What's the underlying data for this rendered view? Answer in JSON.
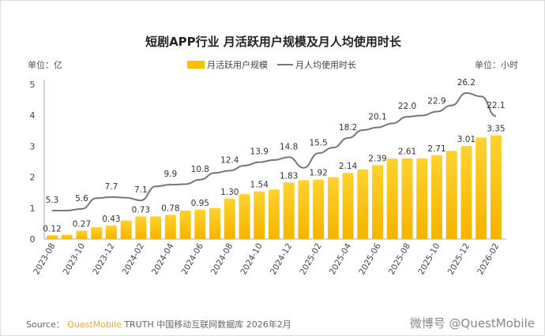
{
  "chart_data": {
    "type": "bar+line",
    "title": "短剧APP行业 月活跃用户规模及月人均使用时长",
    "left_unit": "单位：亿",
    "right_unit": "单位：小时",
    "legend": [
      "月活跃用户规模",
      "月人均使用时长"
    ],
    "legend_placement": "top-center",
    "ylim": [
      0,
      5
    ],
    "yticks": [
      "0",
      "1",
      "2",
      "3",
      "4",
      "5"
    ],
    "categories": [
      "2023-08",
      "2023-09",
      "2023-10",
      "2023-11",
      "2023-12",
      "2024-01",
      "2024-02",
      "2024-03",
      "2024-04",
      "2024-05",
      "2024-06",
      "2024-07",
      "2024-08",
      "2024-09",
      "2024-10",
      "2024-11",
      "2024-12",
      "2025-01",
      "2025-02",
      "2025-03",
      "2025-04",
      "2025-05",
      "2025-06",
      "2025-07",
      "2025-08",
      "2025-09",
      "2025-10",
      "2025-11",
      "2025-12",
      "2026-01",
      "2026-02"
    ],
    "xtick_labels": [
      "2023-08",
      "2023-10",
      "2023-12",
      "2024-02",
      "2024-04",
      "2024-06",
      "2024-08",
      "2024-10",
      "2024-12",
      "2025-02",
      "2025-04",
      "2025-06",
      "2025-08",
      "2025-10",
      "2025-12",
      "2026-02"
    ],
    "series": [
      {
        "name": "月活跃用户规模",
        "type": "bar",
        "color": "#F8C000",
        "values": [
          0.12,
          0.14,
          0.27,
          0.38,
          0.43,
          0.6,
          0.73,
          0.73,
          0.78,
          0.92,
          0.95,
          1.0,
          1.3,
          1.45,
          1.54,
          1.6,
          1.83,
          1.9,
          1.92,
          2.0,
          2.14,
          2.25,
          2.39,
          2.6,
          2.61,
          2.61,
          2.71,
          2.85,
          3.01,
          3.28,
          3.35
        ],
        "labels": [
          "0.12",
          "",
          "0.27",
          "",
          "0.43",
          "",
          "0.73",
          "",
          "0.78",
          "",
          "0.95",
          "",
          "1.30",
          "",
          "1.54",
          "",
          "1.83",
          "",
          "1.92",
          "",
          "2.14",
          "",
          "2.39",
          "",
          "2.61",
          "",
          "2.71",
          "",
          "3.01",
          "",
          "3.35"
        ]
      },
      {
        "name": "月人均使用时长",
        "type": "line",
        "color": "#777777",
        "values": [
          5.3,
          5.3,
          5.6,
          7.5,
          7.7,
          7.6,
          7.1,
          9.6,
          9.9,
          10.0,
          10.8,
          12.0,
          12.4,
          13.3,
          13.9,
          14.3,
          14.8,
          12.9,
          15.5,
          16.5,
          18.2,
          19.6,
          20.1,
          20.8,
          22.0,
          22.2,
          22.9,
          24.0,
          26.2,
          25.6,
          22.1
        ],
        "labels": [
          "5.3",
          "",
          "5.6",
          "",
          "7.7",
          "",
          "7.1",
          "",
          "9.9",
          "",
          "10.8",
          "",
          "12.4",
          "",
          "13.9",
          "",
          "14.8",
          "",
          "15.5",
          "",
          "18.2",
          "",
          "20.1",
          "",
          "22.0",
          "",
          "22.9",
          "",
          "26.2",
          "",
          "22.1"
        ]
      }
    ]
  },
  "footer": {
    "source_label": "Source：",
    "source_brand": "QuestMobile",
    "source_text": "TRUTH 中国移动互联网数据库 2026年2月",
    "watermark": "微博号 @QuestMobile"
  }
}
